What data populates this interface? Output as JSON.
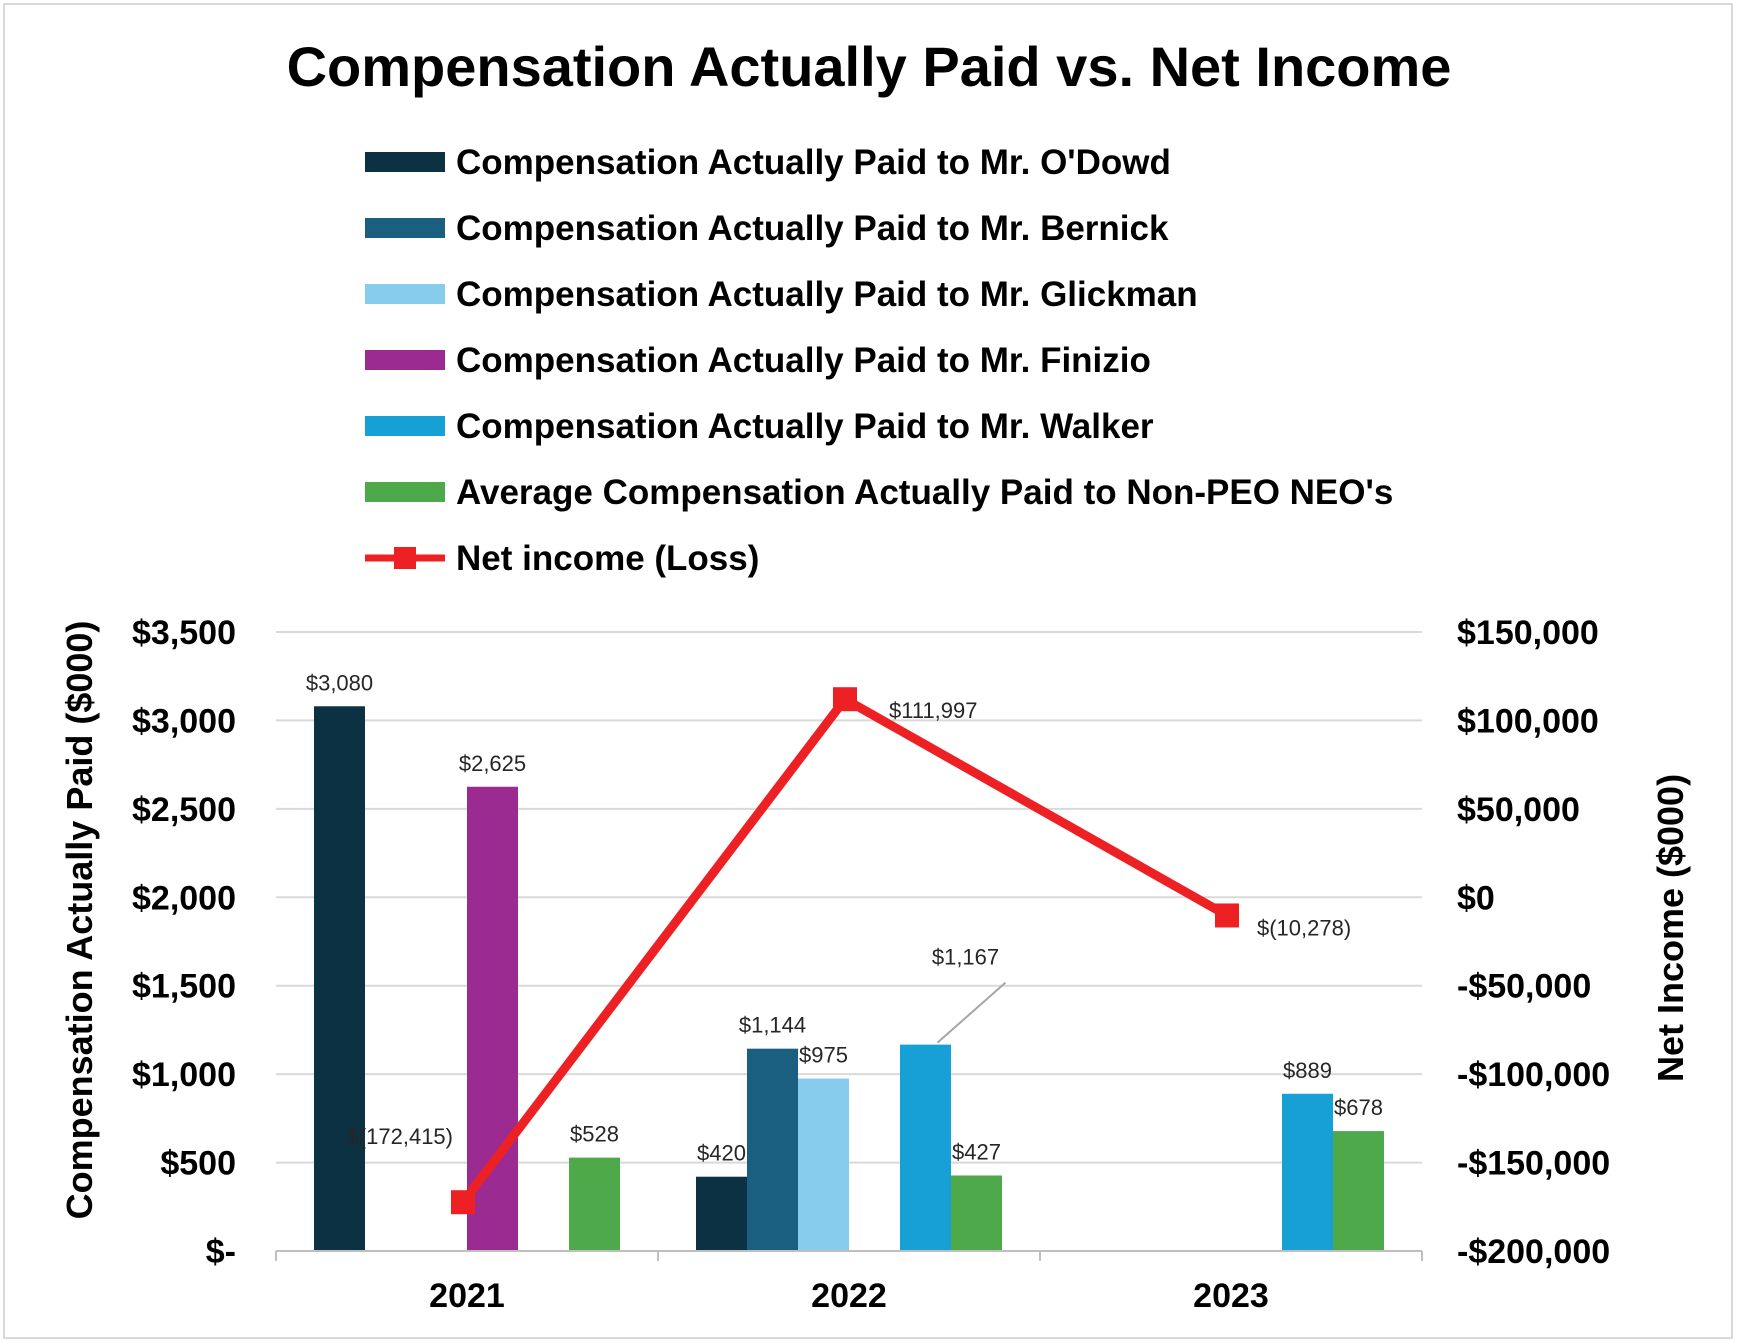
{
  "chart_data": {
    "type": "bar",
    "title": "Compensation Actually Paid vs. Net Income",
    "categories": [
      "2021",
      "2022",
      "2023"
    ],
    "y_left": {
      "label": "Compensation Actually Paid ($000)",
      "range": [
        0,
        3500
      ],
      "ticks": [
        0,
        500,
        1000,
        1500,
        2000,
        2500,
        3000,
        3500
      ],
      "tick_labels": [
        "$-",
        "$500",
        "$1,000",
        "$1,500",
        "$2,000",
        "$2,500",
        "$3,000",
        "$3,500"
      ]
    },
    "y_right": {
      "label": "Net Income ($000)",
      "range": [
        -200000,
        150000
      ],
      "ticks": [
        -200000,
        -150000,
        -100000,
        -50000,
        0,
        50000,
        100000,
        150000
      ],
      "tick_labels": [
        "-$200,000",
        "-$150,000",
        "-$100,000",
        "-$50,000",
        "$0",
        "$50,000",
        "$100,000",
        "$150,000"
      ]
    },
    "grid": true,
    "legend_position": "top",
    "series": [
      {
        "name": "Compensation Actually Paid to Mr. O'Dowd",
        "type": "bar",
        "axis": "left",
        "color": "#0b3142",
        "values": [
          3080,
          420,
          null
        ],
        "labels": [
          "$3,080",
          "$420",
          null
        ]
      },
      {
        "name": "Compensation Actually Paid to Mr. Bernick",
        "type": "bar",
        "axis": "left",
        "color": "#1a5f80",
        "values": [
          null,
          1144,
          null
        ],
        "labels": [
          null,
          "$1,144",
          null
        ]
      },
      {
        "name": "Compensation Actually Paid to Mr. Glickman",
        "type": "bar",
        "axis": "left",
        "color": "#87ccec",
        "values": [
          null,
          975,
          null
        ],
        "labels": [
          null,
          "$975",
          null
        ]
      },
      {
        "name": "Compensation Actually Paid to Mr. Finizio",
        "type": "bar",
        "axis": "left",
        "color": "#9c2b91",
        "values": [
          2625,
          null,
          null
        ],
        "labels": [
          "$2,625",
          null,
          null
        ]
      },
      {
        "name": "Compensation Actually Paid to Mr. Walker",
        "type": "bar",
        "axis": "left",
        "color": "#17a0d6",
        "values": [
          null,
          1167,
          889
        ],
        "labels": [
          null,
          "$1,167",
          "$889"
        ]
      },
      {
        "name": "Average Compensation Actually Paid to Non-PEO NEO's",
        "type": "bar",
        "axis": "left",
        "color": "#4ea94a",
        "values": [
          528,
          427,
          678
        ],
        "labels": [
          "$528",
          "$427",
          "$678"
        ]
      },
      {
        "name": "Net income (Loss)",
        "type": "line",
        "axis": "right",
        "color": "#ed2024",
        "values": [
          -172415,
          111997,
          -10278
        ],
        "labels": [
          "$(172,415)",
          "$111,997",
          "$(10,278)"
        ]
      }
    ]
  }
}
